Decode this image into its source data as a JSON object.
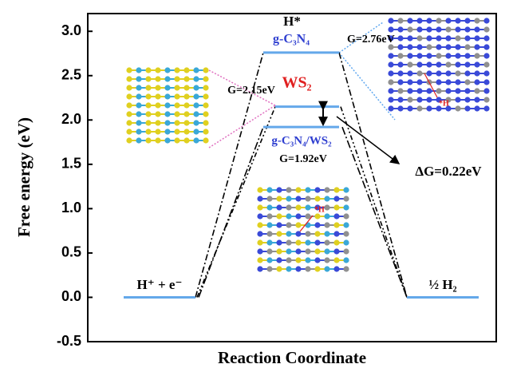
{
  "chart_data": {
    "type": "step",
    "y_label": "Free energy (eV)",
    "x_label": "Reaction Coordinate",
    "ylim": [
      -0.5,
      3.2
    ],
    "yticks": [
      -0.5,
      {
        "value": 0,
        "label": "0.0"
      },
      0.5,
      {
        "value": 1,
        "label": "1.0"
      },
      1.5,
      {
        "value": 2,
        "label": "2.0"
      },
      2.5,
      {
        "value": 3,
        "label": "3.0"
      }
    ],
    "states": [
      "H⁺ + e⁻",
      "H*",
      "½ H₂"
    ],
    "level_color": "#64a8ea",
    "series": [
      {
        "name": "g-C₃N₄",
        "color": "#2f3fd0",
        "values": [
          0,
          2.76,
          0
        ],
        "value_labels": [
          null,
          "G=2.76eV",
          null
        ]
      },
      {
        "name": "WS₂",
        "color": "#e02020",
        "values": [
          0,
          2.15,
          0
        ],
        "value_labels": [
          null,
          "G=2.15eV",
          null
        ]
      },
      {
        "name": "g-C₃N₄/WS₂",
        "color": "#2f3fd0",
        "values": [
          0,
          1.92,
          0
        ],
        "value_labels": [
          null,
          "G=1.92eV",
          null
        ]
      }
    ],
    "annotation": "ΔG=0.22eV",
    "image_labels": [
      "*H",
      "*H"
    ]
  }
}
